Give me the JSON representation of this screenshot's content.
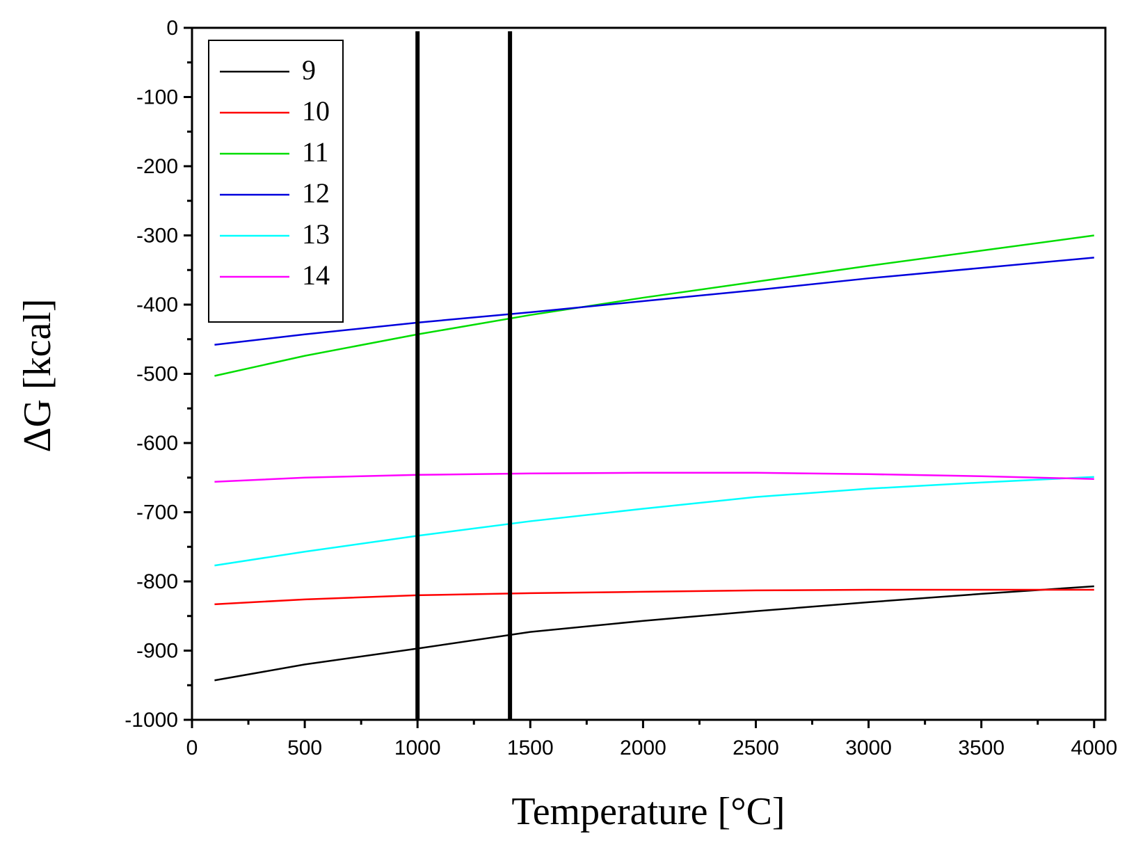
{
  "chart_data": {
    "type": "line",
    "x_label": "Temperature [°C]",
    "y_label": "ΔG [kcal]",
    "x": [
      100,
      500,
      1000,
      1500,
      2000,
      2500,
      3000,
      3500,
      4000
    ],
    "series": [
      {
        "name": "9",
        "color": "#000000",
        "values": [
          -943,
          -920,
          -897,
          -873,
          -857,
          -843,
          -830,
          -818,
          -807
        ]
      },
      {
        "name": "10",
        "color": "#ff0000",
        "values": [
          -833,
          -826,
          -820,
          -817,
          -815,
          -813,
          -812,
          -812,
          -812
        ]
      },
      {
        "name": "11",
        "color": "#00dd00",
        "values": [
          -503,
          -474,
          -443,
          -415,
          -390,
          -367,
          -344,
          -322,
          -300
        ]
      },
      {
        "name": "12",
        "color": "#0000dd",
        "values": [
          -458,
          -443,
          -426,
          -411,
          -395,
          -379,
          -362,
          -347,
          -332
        ]
      },
      {
        "name": "13",
        "color": "#00ffff",
        "values": [
          -777,
          -757,
          -734,
          -713,
          -695,
          -678,
          -666,
          -657,
          -649
        ]
      },
      {
        "name": "14",
        "color": "#ff00ff",
        "values": [
          -656,
          -650,
          -646,
          -644,
          -643,
          -643,
          -645,
          -648,
          -652
        ]
      }
    ],
    "vlines": [
      1000,
      1410
    ],
    "xlim": [
      0,
      4050
    ],
    "xticks": [
      0,
      500,
      1000,
      1500,
      2000,
      2500,
      3000,
      3500,
      4000
    ],
    "ylim": [
      -1000,
      0
    ],
    "yticks": [
      -1000,
      -900,
      -800,
      -700,
      -600,
      -500,
      -400,
      -300,
      -200,
      -100,
      0
    ],
    "grid": false,
    "legend": "upper left"
  }
}
